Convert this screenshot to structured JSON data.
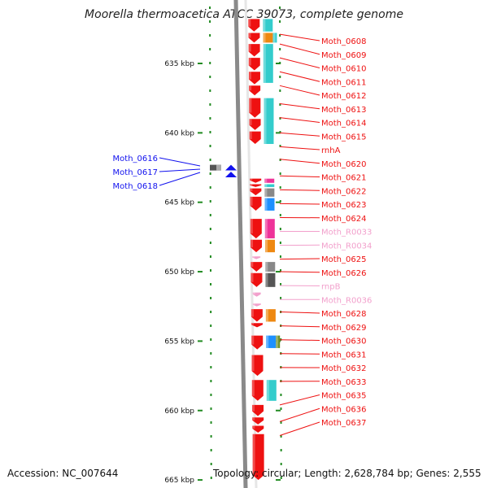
{
  "title": "Moorella thermoacetica ATCC 39073, complete genome",
  "accession": "Accession: NC_007644",
  "topology": "Topology: circular; Length: 2,628,784 bp; Genes: 2,555",
  "scale": {
    "ticks": [
      {
        "label": "635 kbp",
        "kbp": 635
      },
      {
        "label": "640 kbp",
        "kbp": 640
      },
      {
        "label": "645 kbp",
        "kbp": 645
      },
      {
        "label": "650 kbp",
        "kbp": 650
      },
      {
        "label": "655 kbp",
        "kbp": 655
      },
      {
        "label": "660 kbp",
        "kbp": 660
      },
      {
        "label": "665 kbp",
        "kbp": 665
      }
    ]
  },
  "colors": {
    "cds": "#ee1111",
    "rna": "#f2a0cc",
    "reverse_strand": "#1111ee",
    "backbone": "#8a8a8a",
    "tick": "#228b22",
    "cyan": "#33cccc",
    "orange": "#ee8811",
    "magenta": "#ee3399",
    "gray": "#888888",
    "darkgray": "#555555",
    "blue": "#1e90ff",
    "olive": "#6b8e23"
  },
  "left_labels": [
    {
      "text": "Moth_0616",
      "kbp": 643.0
    },
    {
      "text": "Moth_0617",
      "kbp": 643.5
    },
    {
      "text": "Moth_0618",
      "kbp": 644.0
    }
  ],
  "right_labels": [
    {
      "text": "Moth_0608",
      "kbp": 632.9,
      "type": "cds"
    },
    {
      "text": "Moth_0609",
      "kbp": 633.6,
      "type": "cds"
    },
    {
      "text": "Moth_0610",
      "kbp": 634.6,
      "type": "cds"
    },
    {
      "text": "Moth_0611",
      "kbp": 635.6,
      "type": "cds"
    },
    {
      "text": "Moth_0612",
      "kbp": 636.6,
      "type": "cds"
    },
    {
      "text": "Moth_0613",
      "kbp": 637.9,
      "type": "cds"
    },
    {
      "text": "Moth_0614",
      "kbp": 638.9,
      "type": "cds"
    },
    {
      "text": "Moth_0615",
      "kbp": 640.0,
      "type": "cds"
    },
    {
      "text": "rnhA",
      "kbp": 641.0,
      "type": "cds"
    },
    {
      "text": "Moth_0620",
      "kbp": 641.9,
      "type": "cds"
    },
    {
      "text": "Moth_0621",
      "kbp": 643.1,
      "type": "cds"
    },
    {
      "text": "Moth_0622",
      "kbp": 644.1,
      "type": "cds"
    },
    {
      "text": "Moth_0623",
      "kbp": 645.1,
      "type": "cds"
    },
    {
      "text": "Moth_0624",
      "kbp": 646.1,
      "type": "cds"
    },
    {
      "text": "Moth_R0033",
      "kbp": 647.1,
      "type": "rna"
    },
    {
      "text": "Moth_R0034",
      "kbp": 648.1,
      "type": "rna"
    },
    {
      "text": "Moth_0625",
      "kbp": 649.1,
      "type": "cds"
    },
    {
      "text": "Moth_0626",
      "kbp": 650.0,
      "type": "cds"
    },
    {
      "text": "rnpB",
      "kbp": 651.0,
      "type": "rna"
    },
    {
      "text": "Moth_R0036",
      "kbp": 652.0,
      "type": "rna"
    },
    {
      "text": "Moth_0628",
      "kbp": 652.9,
      "type": "cds"
    },
    {
      "text": "Moth_0629",
      "kbp": 653.9,
      "type": "cds"
    },
    {
      "text": "Moth_0630",
      "kbp": 654.9,
      "type": "cds"
    },
    {
      "text": "Moth_0631",
      "kbp": 655.9,
      "type": "cds"
    },
    {
      "text": "Moth_0632",
      "kbp": 656.9,
      "type": "cds"
    },
    {
      "text": "Moth_0633",
      "kbp": 657.9,
      "type": "cds"
    },
    {
      "text": "Moth_0635",
      "kbp": 659.6,
      "type": "cds"
    },
    {
      "text": "Moth_0636",
      "kbp": 660.8,
      "type": "cds"
    },
    {
      "text": "Moth_0637",
      "kbp": 661.8,
      "type": "cds"
    }
  ],
  "genes": [
    {
      "from": 631.8,
      "to": 632.7,
      "type": "cds"
    },
    {
      "from": 632.8,
      "to": 633.5,
      "type": "cds"
    },
    {
      "from": 633.6,
      "to": 634.5,
      "type": "cds"
    },
    {
      "from": 634.6,
      "to": 635.5,
      "type": "cds"
    },
    {
      "from": 635.6,
      "to": 636.5,
      "type": "cds"
    },
    {
      "from": 636.6,
      "to": 637.3,
      "type": "cds"
    },
    {
      "from": 637.5,
      "to": 638.9,
      "type": "cds"
    },
    {
      "from": 639.0,
      "to": 639.8,
      "type": "cds"
    },
    {
      "from": 639.9,
      "to": 640.8,
      "type": "cds"
    },
    {
      "from": 643.3,
      "to": 643.6,
      "type": "cds"
    },
    {
      "from": 643.7,
      "to": 643.9,
      "type": "cds"
    },
    {
      "from": 644.0,
      "to": 644.5,
      "type": "cds"
    },
    {
      "from": 644.6,
      "to": 645.6,
      "type": "cds"
    },
    {
      "from": 646.2,
      "to": 647.6,
      "type": "cds"
    },
    {
      "from": 647.7,
      "to": 648.6,
      "type": "cds"
    },
    {
      "from": 648.9,
      "to": 649.1,
      "type": "rna"
    },
    {
      "from": 649.3,
      "to": 650.0,
      "type": "cds"
    },
    {
      "from": 650.1,
      "to": 651.1,
      "type": "cds"
    },
    {
      "from": 651.5,
      "to": 651.8,
      "type": "rna"
    },
    {
      "from": 652.3,
      "to": 652.5,
      "type": "rna"
    },
    {
      "from": 652.7,
      "to": 653.6,
      "type": "cds"
    },
    {
      "from": 653.7,
      "to": 654.0,
      "type": "cds"
    },
    {
      "from": 654.6,
      "to": 655.6,
      "type": "cds"
    },
    {
      "from": 656.0,
      "to": 657.5,
      "type": "cds"
    },
    {
      "from": 657.8,
      "to": 659.3,
      "type": "cds"
    },
    {
      "from": 659.6,
      "to": 660.4,
      "type": "cds"
    },
    {
      "from": 660.5,
      "to": 661.0,
      "type": "cds"
    },
    {
      "from": 661.1,
      "to": 661.6,
      "type": "cds"
    },
    {
      "from": 661.7,
      "to": 665.0,
      "type": "cds"
    }
  ],
  "reverse_genes": [
    {
      "from": 642.3,
      "to": 642.7
    },
    {
      "from": 642.8,
      "to": 643.2
    }
  ],
  "domains": [
    {
      "from": 631.8,
      "to": 632.7,
      "color": "cyan",
      "lane": 0
    },
    {
      "from": 632.8,
      "to": 633.5,
      "color": "orange",
      "lane": 0
    },
    {
      "from": 632.8,
      "to": 633.5,
      "color": "cyan",
      "lane": 1
    },
    {
      "from": 633.6,
      "to": 636.4,
      "color": "cyan",
      "lane": 0
    },
    {
      "from": 637.5,
      "to": 640.8,
      "color": "cyan",
      "lane": 0
    },
    {
      "from": 643.3,
      "to": 643.6,
      "color": "magenta",
      "lane": 0
    },
    {
      "from": 643.7,
      "to": 643.9,
      "color": "cyan",
      "lane": 0
    },
    {
      "from": 644.0,
      "to": 644.6,
      "color": "gray",
      "lane": 0
    },
    {
      "from": 644.7,
      "to": 645.6,
      "color": "blue",
      "lane": 0
    },
    {
      "from": 646.2,
      "to": 647.6,
      "color": "magenta",
      "lane": 0
    },
    {
      "from": 647.7,
      "to": 648.6,
      "color": "orange",
      "lane": 0
    },
    {
      "from": 649.3,
      "to": 650.0,
      "color": "gray",
      "lane": 0
    },
    {
      "from": 650.1,
      "to": 651.1,
      "color": "darkgray",
      "lane": 0
    },
    {
      "from": 652.7,
      "to": 653.6,
      "color": "orange",
      "lane": 0
    },
    {
      "from": 654.6,
      "to": 655.5,
      "color": "blue",
      "lane": 0
    },
    {
      "from": 654.6,
      "to": 655.5,
      "color": "olive",
      "lane": 1
    },
    {
      "from": 657.8,
      "to": 659.3,
      "color": "cyan",
      "lane": 0
    }
  ]
}
